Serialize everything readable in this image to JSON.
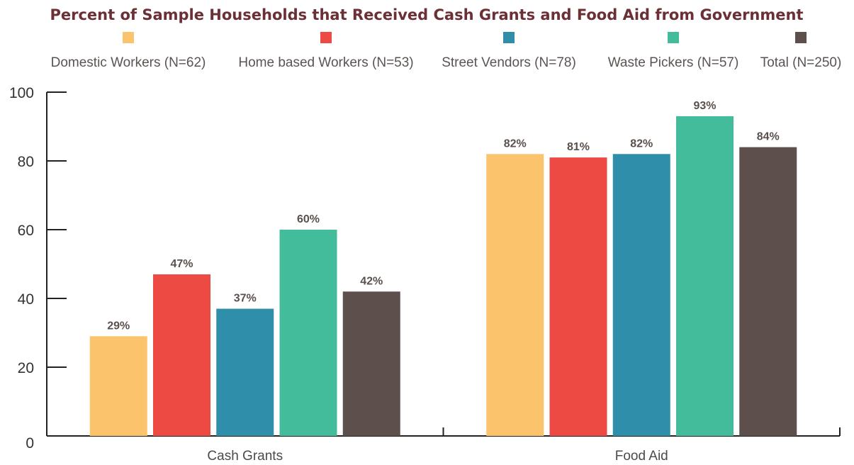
{
  "chart_data": {
    "type": "bar",
    "title": "Percent of Sample Households that Received Cash Grants and Food Aid from Government",
    "xlabel": "",
    "ylabel": "",
    "categories": [
      "Cash Grants",
      "Food Aid"
    ],
    "ylim": [
      0,
      100
    ],
    "yticks": [
      "0",
      "20",
      "40",
      "60",
      "80",
      "100"
    ],
    "grid": false,
    "legend_position": "top",
    "series": [
      {
        "name": "Domestic Workers (N=62)",
        "values": [
          29,
          82
        ],
        "labels": [
          "29%",
          "82%"
        ],
        "color": "#fbc46c"
      },
      {
        "name": "Home based Workers (N=53)",
        "values": [
          47,
          81
        ],
        "labels": [
          "47%",
          "81%"
        ],
        "color": "#ec4a43"
      },
      {
        "name": "Street Vendors (N=78)",
        "values": [
          37,
          82
        ],
        "labels": [
          "37%",
          "82%"
        ],
        "color": "#2f8faa"
      },
      {
        "name": "Waste Pickers (N=57)",
        "values": [
          60,
          93
        ],
        "labels": [
          "60%",
          "93%"
        ],
        "color": "#43bc9c"
      },
      {
        "name": "Total (N=250)",
        "values": [
          42,
          84
        ],
        "labels": [
          "42%",
          "84%"
        ],
        "color": "#5d504c"
      }
    ]
  }
}
